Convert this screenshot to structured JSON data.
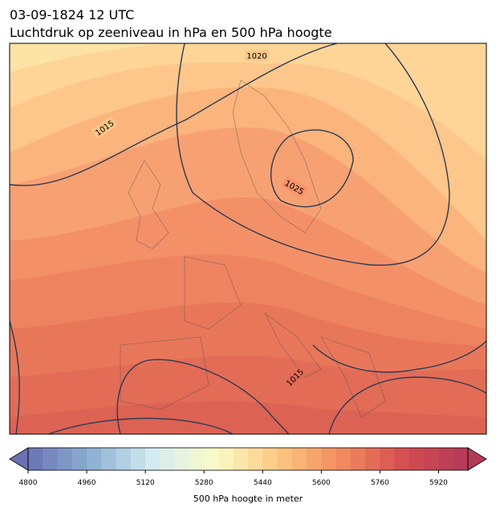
{
  "title": "03-09-1824 12 UTC",
  "subtitle": "Luchtdruk op zeeniveau in hPa en 500 hPa hoogte",
  "contour_labels": [
    "1020",
    "1015",
    "1025",
    "1015"
  ],
  "colorbar": {
    "label": "500 hPa hoogte in meter",
    "range": [
      4800,
      6000
    ],
    "step": 40,
    "ticks": [
      4800,
      4960,
      5120,
      5280,
      5440,
      5600,
      5760,
      5920
    ],
    "colors": [
      "#6a72b4",
      "#8cb0d3",
      "#d6ecf3",
      "#fbfbc6",
      "#fdc680",
      "#f18a5e",
      "#d54c50",
      "#b33a59"
    ]
  }
}
